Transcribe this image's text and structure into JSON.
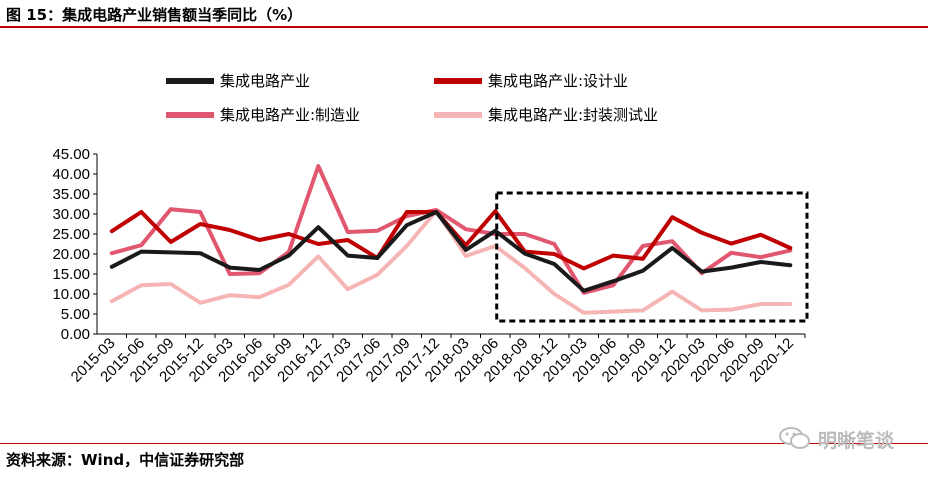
{
  "header": {
    "title": "图 15：集成电路产业销售额当季同比（%）"
  },
  "footer": {
    "source": "资料来源：Wind，中信证券研究部"
  },
  "watermark": {
    "text": "明晰笔谈",
    "icon": "wechat-icon"
  },
  "chart_data": {
    "type": "line",
    "title": "",
    "xlabel": "",
    "ylabel": "",
    "ylim": [
      0,
      45
    ],
    "y_ticks": [
      "0.00",
      "5.00",
      "10.00",
      "15.00",
      "20.00",
      "25.00",
      "30.00",
      "35.00",
      "40.00",
      "45.00"
    ],
    "grid": false,
    "legend_position": "top",
    "highlight_box": {
      "from": "2018-09",
      "to": "2020-12",
      "style": "dashed"
    },
    "categories": [
      "2015-03",
      "2015-06",
      "2015-09",
      "2015-12",
      "2016-03",
      "2016-06",
      "2016-09",
      "2016-12",
      "2017-03",
      "2017-06",
      "2017-09",
      "2017-12",
      "2018-03",
      "2018-06",
      "2018-09",
      "2018-12",
      "2019-03",
      "2019-06",
      "2019-09",
      "2019-12",
      "2020-03",
      "2020-06",
      "2020-09",
      "2020-12"
    ],
    "series": [
      {
        "name": "集成电路产业",
        "color": "#1a1a1a",
        "values": [
          16.8,
          20.6,
          20.4,
          20.2,
          16.6,
          16.0,
          19.6,
          26.7,
          19.6,
          19.0,
          27.2,
          30.5,
          21.0,
          25.8,
          20.1,
          17.5,
          10.8,
          13.2,
          15.8,
          21.5,
          15.6,
          16.6,
          18.0,
          17.2
        ]
      },
      {
        "name": "集成电路产业:设计业",
        "color": "#c00000",
        "values": [
          25.7,
          30.5,
          23.0,
          27.5,
          26.0,
          23.5,
          25.0,
          22.5,
          23.5,
          19.0,
          30.5,
          30.5,
          22.2,
          30.7,
          20.6,
          20.0,
          16.4,
          19.6,
          18.8,
          29.2,
          25.3,
          22.6,
          24.8,
          21.5
        ]
      },
      {
        "name": "集成电路产业:制造业",
        "color": "#e0576f",
        "values": [
          20.2,
          22.2,
          31.2,
          30.5,
          15.0,
          15.2,
          20.5,
          42.0,
          25.5,
          25.8,
          29.5,
          31.0,
          26.2,
          25.0,
          25.0,
          22.5,
          10.3,
          12.2,
          22.0,
          23.2,
          15.2,
          20.3,
          19.2,
          20.9
        ]
      },
      {
        "name": "集成电路产业:封装测试业",
        "color": "#f6b5b5",
        "values": [
          8.2,
          12.2,
          12.5,
          7.8,
          9.7,
          9.2,
          12.3,
          19.4,
          11.2,
          14.8,
          22.0,
          30.8,
          19.5,
          22.0,
          16.5,
          10.0,
          5.3,
          5.6,
          5.9,
          10.6,
          5.9,
          6.1,
          7.5,
          7.5
        ]
      }
    ]
  }
}
